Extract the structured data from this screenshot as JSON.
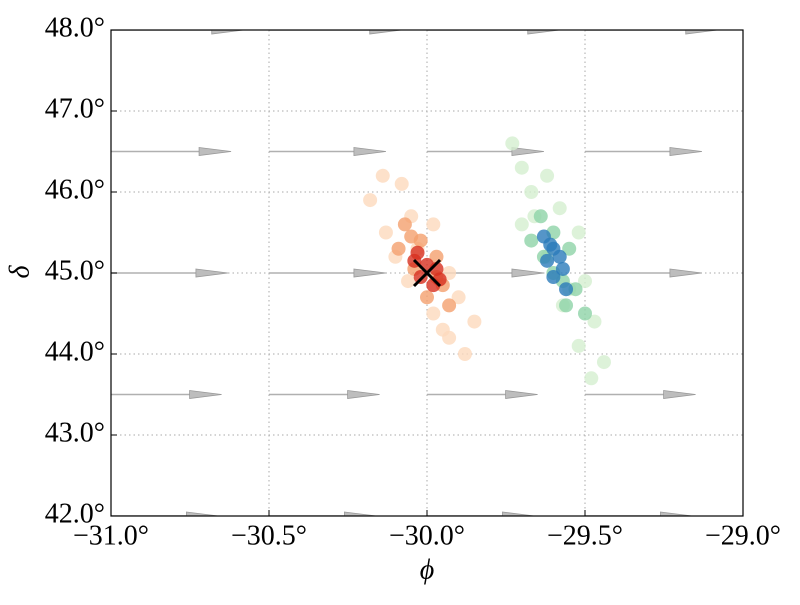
{
  "chart_data": {
    "type": "scatter",
    "xlabel": "ϕ",
    "ylabel": "δ",
    "xlim": [
      -31.0,
      -29.0
    ],
    "ylim": [
      42.0,
      48.0
    ],
    "xticks": [
      {
        "value": -31.0,
        "label": "−31.0°"
      },
      {
        "value": -30.5,
        "label": "−30.5°"
      },
      {
        "value": -30.0,
        "label": "−30.0°"
      },
      {
        "value": -29.5,
        "label": "−29.5°"
      },
      {
        "value": -29.0,
        "label": "−29.0°"
      }
    ],
    "yticks": [
      {
        "value": 42.0,
        "label": "42.0°"
      },
      {
        "value": 43.0,
        "label": "43.0°"
      },
      {
        "value": 44.0,
        "label": "44.0°"
      },
      {
        "value": 45.0,
        "label": "45.0°"
      },
      {
        "value": 46.0,
        "label": "46.0°"
      },
      {
        "value": 47.0,
        "label": "47.0°"
      },
      {
        "value": 48.0,
        "label": "48.0°"
      }
    ],
    "grid": true,
    "quiver": {
      "color": "#b0b0b0",
      "x": [
        -31.0,
        -30.5,
        -30.0,
        -29.5,
        -31.0,
        -30.5,
        -30.0,
        -29.5,
        -31.0,
        -30.5,
        -30.0,
        -29.5,
        -31.0,
        -30.5,
        -30.0,
        -29.5,
        -31.0,
        -30.5,
        -30.0,
        -29.5
      ],
      "y": [
        48.0,
        48.0,
        48.0,
        48.0,
        46.5,
        46.5,
        46.5,
        46.5,
        45.0,
        45.0,
        45.0,
        45.0,
        43.5,
        43.5,
        43.5,
        43.5,
        42.0,
        42.0,
        42.0,
        42.0
      ],
      "dx": [
        0.42,
        0.42,
        0.42,
        0.42,
        0.38,
        0.37,
        0.37,
        0.37,
        0.37,
        0.37,
        0.37,
        0.37,
        0.35,
        0.35,
        0.35,
        0.35,
        0.34,
        0.34,
        0.34,
        0.34
      ]
    },
    "series": [
      {
        "color": "#fdd9bd",
        "x": [
          -30.14,
          -30.08,
          -30.18,
          -30.05,
          -30.13,
          -29.98,
          -30.1,
          -29.93,
          -30.06,
          -29.9,
          -29.98,
          -29.85,
          -29.93,
          -29.88,
          -30.03,
          -29.95
        ],
        "y": [
          46.2,
          46.1,
          45.9,
          45.7,
          45.5,
          45.6,
          45.2,
          45.0,
          44.9,
          44.7,
          44.5,
          44.4,
          44.2,
          44.0,
          45.3,
          44.3
        ]
      },
      {
        "color": "#f4a06e",
        "x": [
          -30.07,
          -30.02,
          -30.09,
          -29.97,
          -30.04,
          -29.95,
          -30.0,
          -29.93,
          -30.05,
          -29.97
        ],
        "y": [
          45.6,
          45.4,
          45.3,
          45.2,
          45.05,
          44.85,
          44.7,
          44.6,
          45.45,
          44.95
        ]
      },
      {
        "color": "#d7301f",
        "x": [
          -30.03,
          -30.0,
          -30.02,
          -29.97,
          -29.98,
          -30.04,
          -29.96
        ],
        "y": [
          45.25,
          45.1,
          44.95,
          45.05,
          44.85,
          45.15,
          44.92
        ]
      },
      {
        "color": "#d4efcf",
        "x": [
          -29.73,
          -29.7,
          -29.62,
          -29.67,
          -29.58,
          -29.7,
          -29.52,
          -29.62,
          -29.5,
          -29.57,
          -29.47,
          -29.52,
          -29.44,
          -29.48,
          -29.66,
          -29.55
        ],
        "y": [
          46.6,
          46.3,
          46.2,
          46.0,
          45.8,
          45.6,
          45.5,
          45.2,
          44.9,
          44.6,
          44.4,
          44.1,
          43.9,
          43.7,
          45.7,
          44.8
        ]
      },
      {
        "color": "#8fd3a8",
        "x": [
          -29.64,
          -29.6,
          -29.67,
          -29.55,
          -29.6,
          -29.53,
          -29.56,
          -29.5,
          -29.63,
          -29.57
        ],
        "y": [
          45.7,
          45.5,
          45.4,
          45.3,
          45.0,
          44.8,
          44.6,
          44.5,
          45.2,
          44.9
        ]
      },
      {
        "color": "#2b7bba",
        "x": [
          -29.63,
          -29.6,
          -29.62,
          -29.57,
          -29.6,
          -29.56,
          -29.58,
          -29.61
        ],
        "y": [
          45.45,
          45.3,
          45.15,
          45.05,
          44.95,
          44.8,
          45.2,
          45.35
        ]
      },
      {
        "color": "#000000",
        "marker": "x",
        "x": [
          -30.0
        ],
        "y": [
          45.0
        ]
      }
    ]
  }
}
